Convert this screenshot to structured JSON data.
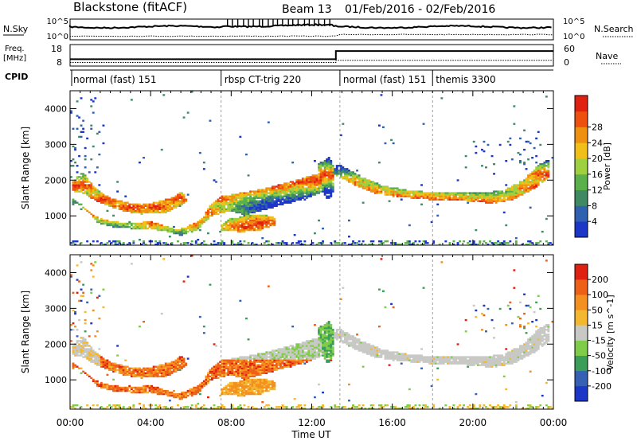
{
  "header": {
    "title": "Blackstone (fitACF)",
    "beam": "Beam 13",
    "date_range": "01/Feb/2016 - 02/Feb/2016"
  },
  "top_panels": {
    "nsky_label": "N.Sky",
    "nsky_ticks": [
      "10^5",
      "10^0"
    ],
    "nsearch_label": "N.Search",
    "nsearch_ticks": [
      "10^5",
      "10^0"
    ],
    "freq_label": "Freq.",
    "freq_unit": "[MHz]",
    "freq_ticks": [
      "18",
      "8"
    ],
    "nave_label": "Nave",
    "nave_ticks": [
      "60",
      "0"
    ],
    "freq_steps": [
      {
        "t": 0,
        "f": 11.2
      },
      {
        "t": 13.2,
        "f": 15.0
      }
    ],
    "nave_steps": [
      {
        "t": 0,
        "n": 10
      },
      {
        "t": 13.2,
        "n": 16
      }
    ],
    "cpid_label": "CPID",
    "cpid_segments": [
      {
        "start": 0,
        "label": "normal (fast) 151"
      },
      {
        "start": 7.5,
        "label": "rbsp CT-trig 220"
      },
      {
        "start": 13.4,
        "label": "normal (fast) 151"
      },
      {
        "start": 18.0,
        "label": "themis 3300"
      }
    ]
  },
  "chart_data": [
    {
      "type": "heatmap",
      "parameter": "Power",
      "ylabel": "Slant Range [km]",
      "colorbar_label": "Power [dB]",
      "ylim": [
        180,
        4500
      ],
      "xlim": [
        0,
        24
      ],
      "y_ticks": [
        1000,
        2000,
        3000,
        4000
      ],
      "colorbar_ticks": [
        "4",
        "8",
        "12",
        "16",
        "20",
        "24",
        "28"
      ],
      "colors": [
        "#1c36c8",
        "#3060b0",
        "#3f8a62",
        "#5ab04a",
        "#9ed040",
        "#f0c018",
        "#f09010",
        "#ee5010",
        "#e02010"
      ]
    },
    {
      "type": "heatmap",
      "parameter": "Velocity",
      "ylabel": "Slant Range [km]",
      "colorbar_label": "Velocity [m s^-1]",
      "ylim": [
        180,
        4500
      ],
      "xlim": [
        0,
        24
      ],
      "y_ticks": [
        1000,
        2000,
        3000,
        4000
      ],
      "colorbar_ticks": [
        "200",
        "100",
        "50",
        "15",
        "-15",
        "-50",
        "-100",
        "-200"
      ],
      "colors": [
        "#1c36c8",
        "#3560b4",
        "#3a9e58",
        "#7fcc4a",
        "#c8c8c4",
        "#f4b830",
        "#f49020",
        "#ee6018",
        "#e02010"
      ]
    }
  ],
  "x_axis": {
    "label": "Time UT",
    "ticks": [
      "00:00",
      "04:00",
      "08:00",
      "12:00",
      "16:00",
      "20:00",
      "00:00"
    ]
  }
}
